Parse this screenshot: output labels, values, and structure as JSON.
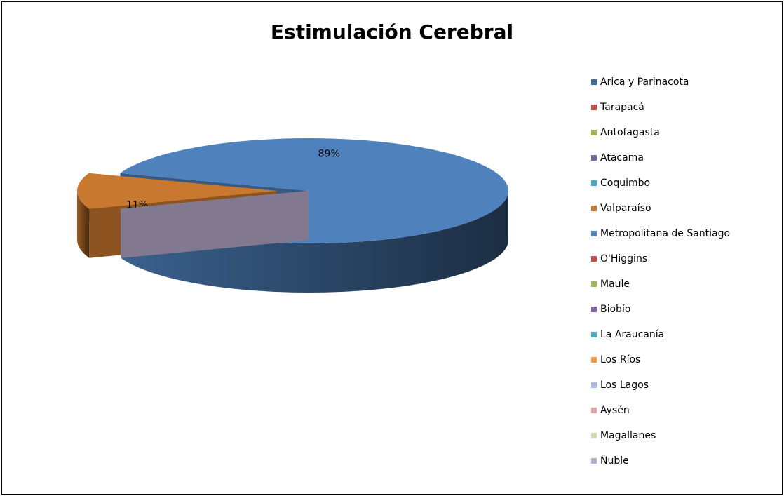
{
  "chart_data": {
    "type": "pie3d",
    "title": "Estimulación Cerebral",
    "categories": [
      "Arica y Parinacota",
      "Tarapacá",
      "Antofagasta",
      "Atacama",
      "Coquimbo",
      "Valparaíso",
      "Metropolitana de Santiago",
      "O'Higgins",
      "Maule",
      "Biobío",
      "La Araucanía",
      "Los Ríos",
      "Los Lagos",
      "Aysén",
      "Magallanes",
      "Ñuble"
    ],
    "values": [
      0,
      0,
      0,
      0,
      0,
      11,
      89,
      0,
      0,
      0,
      0,
      0,
      0,
      0,
      0,
      0
    ],
    "value_labels": [
      null,
      null,
      null,
      null,
      null,
      "11%",
      "89%",
      null,
      null,
      null,
      null,
      null,
      null,
      null,
      null,
      null
    ],
    "colors": [
      "#3F6BA5",
      "#BE4B48",
      "#98B954",
      "#7D60A0",
      "#46AAC5",
      "#C9782F",
      "#4F81BD",
      "#C0504D",
      "#9BBB59",
      "#8064A2",
      "#4BACC6",
      "#F79646",
      "#A7B9E0",
      "#E4A6A4",
      "#CCDDAA",
      "#B9ADCF"
    ],
    "legend": "right"
  }
}
